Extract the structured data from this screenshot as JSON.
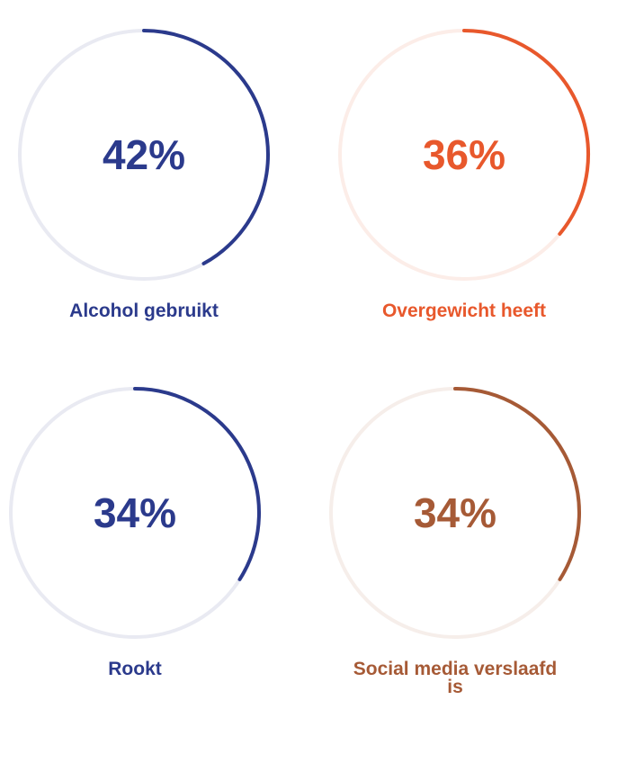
{
  "chart_data": [
    {
      "type": "pie",
      "value": 42,
      "value_label": "42%",
      "label": "Alcohol gebruikt",
      "color": "#2B3A8C",
      "track_color": "#E9EAF2",
      "text_color": "#2B3A8C"
    },
    {
      "type": "pie",
      "value": 36,
      "value_label": "36%",
      "label": "Overgewicht heeft",
      "color": "#E8582C",
      "track_color": "#FCEDE8",
      "text_color": "#E8582C"
    },
    {
      "type": "pie",
      "value": 34,
      "value_label": "34%",
      "label": "Rookt",
      "color": "#2B3A8C",
      "track_color": "#E9EAF2",
      "text_color": "#2B3A8C"
    },
    {
      "type": "pie",
      "value": 34,
      "value_label": "34%",
      "label": "Social media verslaafd is",
      "color": "#A65A36",
      "track_color": "#F6EEEA",
      "text_color": "#A65A36"
    }
  ]
}
